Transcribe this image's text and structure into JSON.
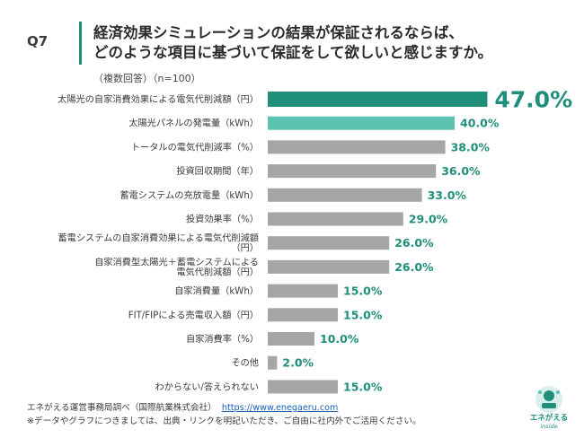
{
  "header": {
    "question": "Q7",
    "title_line1": "経済効果シミュレーションの結果が保証されるならば、",
    "title_line2": "どのような項目に基づいて保証をして欲しいと感じますか。",
    "subtitle": "（複数回答）（n=100）"
  },
  "colors": {
    "accent": "#1f8f7a",
    "second": "#5cc3b3",
    "rest": "#a6a6a6"
  },
  "chart_data": {
    "type": "bar",
    "orientation": "horizontal",
    "categories": [
      [
        "太陽光の自家消費効果による電気代削減額（円）"
      ],
      [
        "太陽光パネルの発電量（kWh）"
      ],
      [
        "トータルの電気代削減率（%）"
      ],
      [
        "投資回収期間（年）"
      ],
      [
        "蓄電システムの充放電量（kWh）"
      ],
      [
        "投資効果率（%）"
      ],
      [
        "蓄電システムの自家消費効果による電気代削減額",
        "（円）"
      ],
      [
        "自家消費型太陽光＋蓄電システムによる",
        "電気代削減額（円）"
      ],
      [
        "自家消費量（kWh）"
      ],
      [
        "FIT/FIPによる売電収入額（円）"
      ],
      [
        "自家消費率（%）"
      ],
      [
        "その他"
      ],
      [
        "わからない/答えられない"
      ]
    ],
    "values": [
      47.0,
      40.0,
      38.0,
      36.0,
      33.0,
      29.0,
      26.0,
      26.0,
      15.0,
      15.0,
      10.0,
      2.0,
      15.0
    ],
    "labels": [
      "47.0%",
      "40.0%",
      "38.0%",
      "36.0%",
      "33.0%",
      "29.0%",
      "26.0%",
      "26.0%",
      "15.0%",
      "15.0%",
      "10.0%",
      "2.0%",
      "15.0%"
    ],
    "xlim": [
      0,
      50
    ],
    "grid": false
  },
  "footer": {
    "source": "エネがえる運営事務局調べ（国際航業株式会社）",
    "url": "https://www.enegaeru.com",
    "note": "※データやグラフにつきましては、出典・リンクを明記いただき、ご自由に社内外でご活用ください。"
  },
  "logo": {
    "name": "エネがえる",
    "sub": "inside"
  }
}
